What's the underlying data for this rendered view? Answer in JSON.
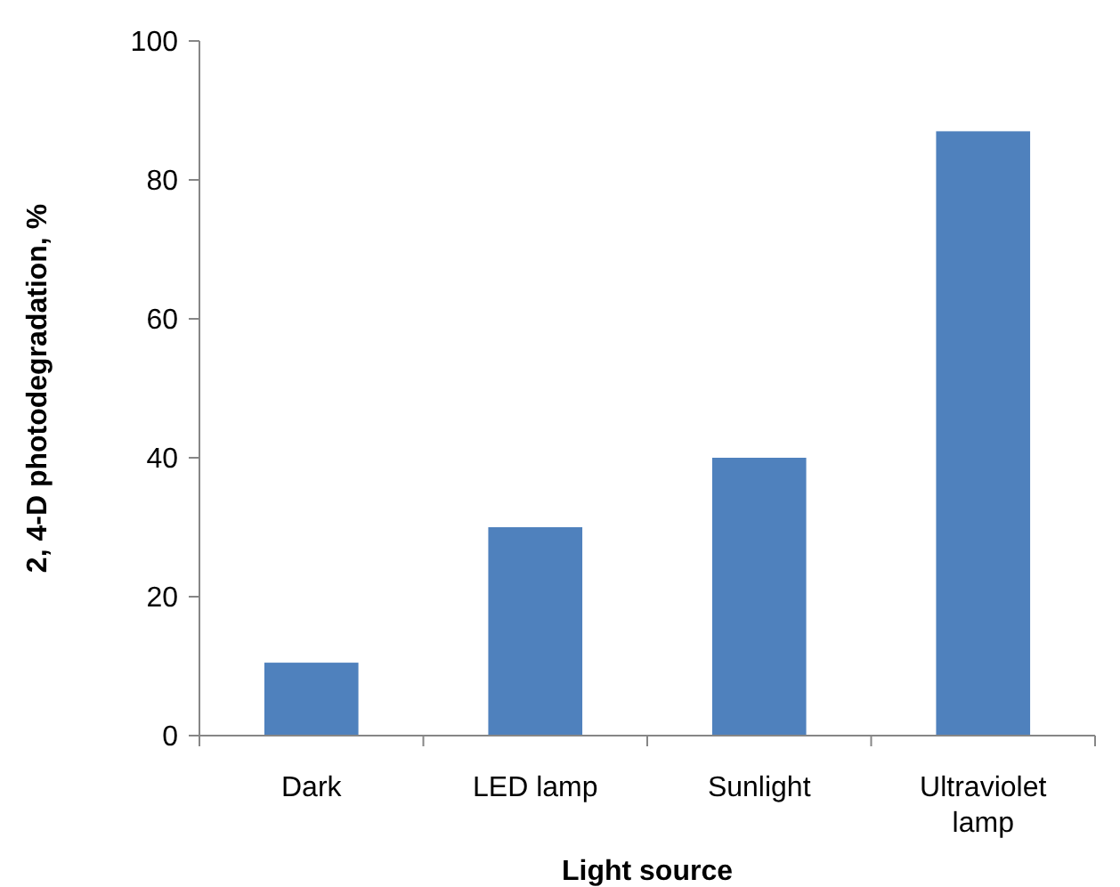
{
  "chart_data": {
    "type": "bar",
    "xlabel": "Light source",
    "ylabel": "2, 4-D photodegradation, %",
    "categories": [
      "Dark",
      "LED lamp",
      "Sunlight",
      "Ultraviolet lamp"
    ],
    "values": [
      10.5,
      30,
      40,
      87
    ],
    "color": "#4f81bd",
    "ylim": [
      0,
      100
    ],
    "yticks": [
      0,
      20,
      40,
      60,
      80,
      100
    ]
  }
}
